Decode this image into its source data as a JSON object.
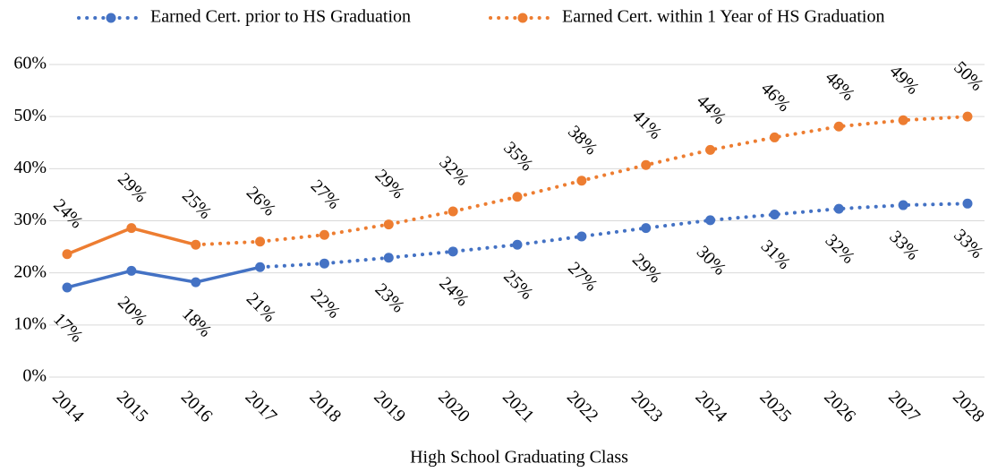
{
  "chart_data": {
    "type": "line",
    "x_label": "High School Graduating Class",
    "categories": [
      "2014",
      "2015",
      "2016",
      "2017",
      "2018",
      "2019",
      "2020",
      "2021",
      "2022",
      "2023",
      "2024",
      "2025",
      "2026",
      "2027",
      "2028"
    ],
    "series": [
      {
        "name": "Earned Cert. prior to HS Graduation",
        "color": "#4472c4",
        "solid_through": "2017",
        "values": [
          17.2,
          20.4,
          18.2,
          21.1,
          21.8,
          22.9,
          24.1,
          25.4,
          27.0,
          28.6,
          30.1,
          31.2,
          32.3,
          33.0,
          33.3
        ],
        "value_labels": [
          "17%",
          "20%",
          "18%",
          "21%",
          "22%",
          "23%",
          "24%",
          "25%",
          "27%",
          "29%",
          "30%",
          "31%",
          "32%",
          "33%",
          "33%"
        ]
      },
      {
        "name": "Earned Cert. within 1 Year of HS Graduation",
        "color": "#ed7d31",
        "solid_through": "2016",
        "values": [
          23.6,
          28.6,
          25.4,
          26.0,
          27.3,
          29.3,
          31.8,
          34.6,
          37.7,
          40.7,
          43.6,
          46.0,
          48.1,
          49.3,
          50.0
        ],
        "value_labels": [
          "24%",
          "29%",
          "25%",
          "26%",
          "27%",
          "29%",
          "32%",
          "35%",
          "38%",
          "41%",
          "44%",
          "46%",
          "48%",
          "49%",
          "50%"
        ]
      }
    ],
    "ylim": [
      0,
      60
    ],
    "yticks": [
      {
        "value": 0,
        "label": "0%"
      },
      {
        "value": 10,
        "label": "10%"
      },
      {
        "value": 20,
        "label": "20%"
      },
      {
        "value": 30,
        "label": "30%"
      },
      {
        "value": 40,
        "label": "40%"
      },
      {
        "value": 50,
        "label": "50%"
      },
      {
        "value": 60,
        "label": "60%"
      }
    ],
    "grid": true,
    "legend": "top"
  }
}
